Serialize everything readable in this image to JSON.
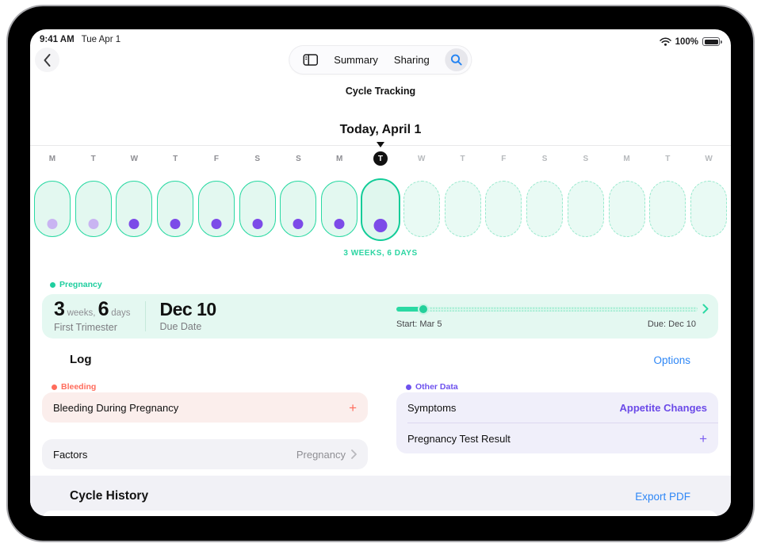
{
  "status_bar": {
    "time": "9:41 AM",
    "date": "Tue Apr 1",
    "battery": "100%"
  },
  "nav": {
    "summary_tab": "Summary",
    "sharing_tab": "Sharing"
  },
  "header": {
    "app_title": "Cycle Tracking",
    "today_label": "Today, April 1"
  },
  "timeline": {
    "gestation_label": "3 WEEKS, 6 DAYS",
    "days": [
      {
        "letter": "M",
        "state": "past",
        "dot": "light"
      },
      {
        "letter": "T",
        "state": "past",
        "dot": "light"
      },
      {
        "letter": "W",
        "state": "past",
        "dot": "solid"
      },
      {
        "letter": "T",
        "state": "past",
        "dot": "solid"
      },
      {
        "letter": "F",
        "state": "past",
        "dot": "solid"
      },
      {
        "letter": "S",
        "state": "past",
        "dot": "solid"
      },
      {
        "letter": "S",
        "state": "past",
        "dot": "solid"
      },
      {
        "letter": "M",
        "state": "past",
        "dot": "solid"
      },
      {
        "letter": "T",
        "state": "today",
        "dot": "solid"
      },
      {
        "letter": "W",
        "state": "future",
        "dot": "none"
      },
      {
        "letter": "T",
        "state": "future",
        "dot": "none"
      },
      {
        "letter": "F",
        "state": "future",
        "dot": "none"
      },
      {
        "letter": "S",
        "state": "future",
        "dot": "none"
      },
      {
        "letter": "S",
        "state": "future",
        "dot": "none"
      },
      {
        "letter": "M",
        "state": "future",
        "dot": "none"
      },
      {
        "letter": "T",
        "state": "future",
        "dot": "none"
      },
      {
        "letter": "W",
        "state": "future",
        "dot": "none"
      }
    ]
  },
  "pregnancy": {
    "section_label": "Pregnancy",
    "weeks_value": "3",
    "weeks_unit": " weeks, ",
    "days_value": "6",
    "days_unit": " days",
    "trimester": "First Trimester",
    "due_value": "Dec 10",
    "due_label": "Due Date",
    "progress": {
      "start_label": "Start: Mar 5",
      "due_label": "Due: Dec 10",
      "percent": 9
    }
  },
  "log": {
    "title": "Log",
    "options_link": "Options",
    "bleeding_label": "Bleeding",
    "bleeding_item": "Bleeding During Pregnancy",
    "bleeding_add": "+",
    "factors_label": "Factors",
    "factors_value": "Pregnancy",
    "other_label": "Other Data",
    "symptoms_label": "Symptoms",
    "symptoms_value": "Appetite Changes",
    "test_label": "Pregnancy Test Result",
    "test_add": "+"
  },
  "history": {
    "title": "Cycle History",
    "export_link": "Export PDF"
  },
  "colors": {
    "teal": "#1fce9f",
    "teal_border": "#2bd9a3",
    "teal_fill": "#e4f8f1",
    "purple": "#6b4ae8",
    "purple_dot": "#7c4be8",
    "purple_dot_light": "#c9b4f2",
    "coral": "#ff6c5c",
    "blue_link": "#2e87f6"
  }
}
